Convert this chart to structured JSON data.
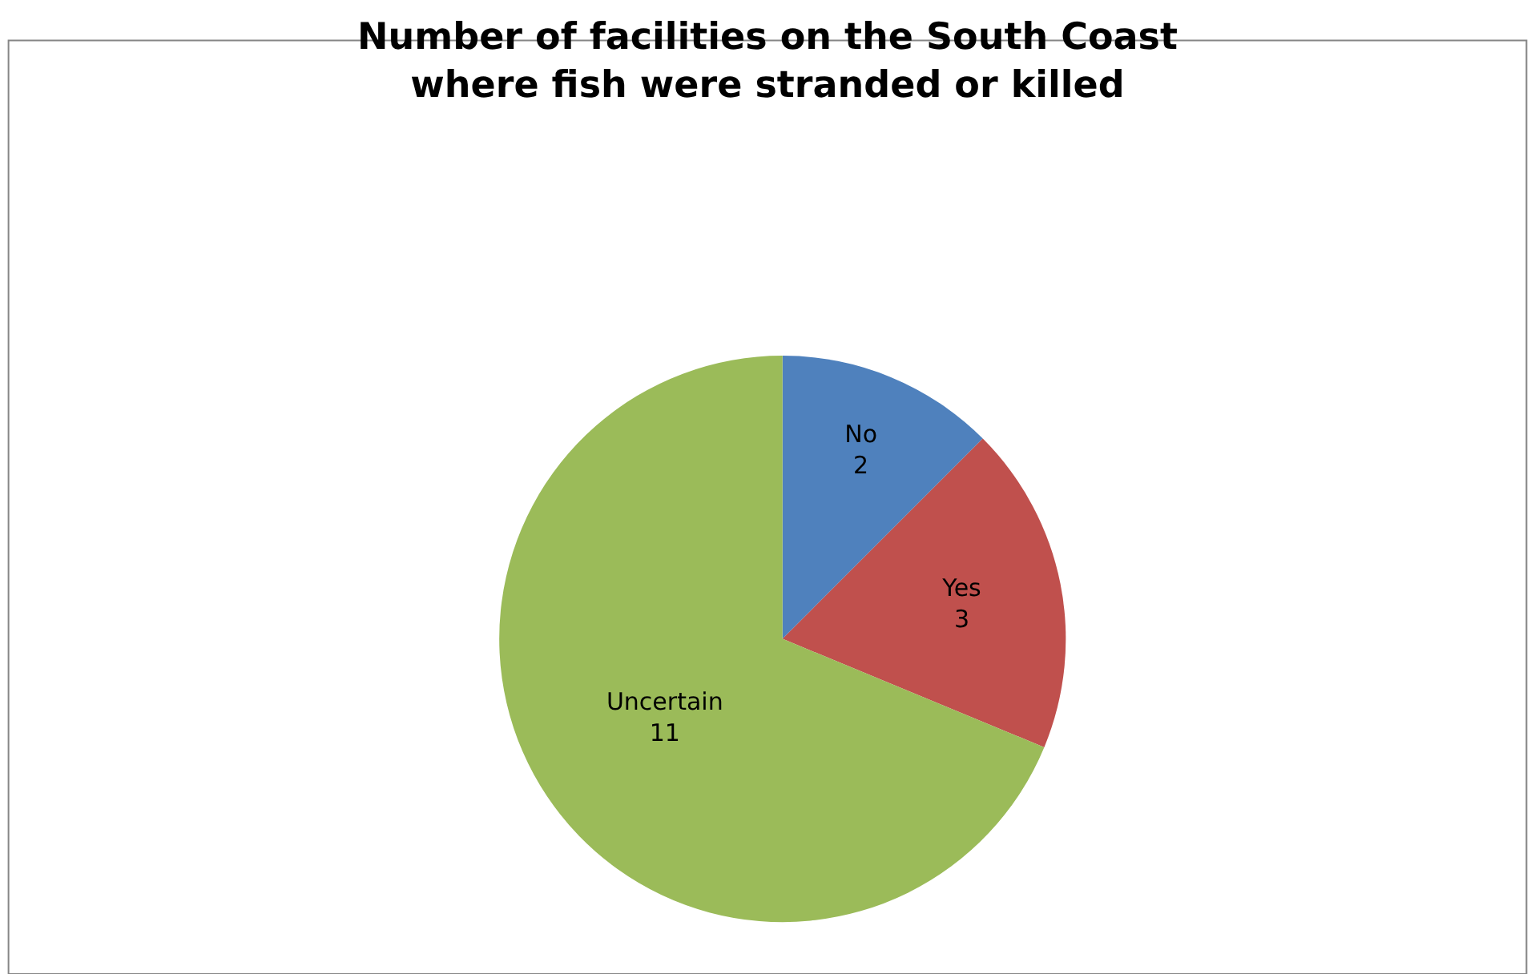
{
  "chart_data": {
    "type": "pie",
    "title": "Number of facilities on the South Coast\nwhere fish were stranded or killed",
    "categories": [
      "No",
      "Yes",
      "Uncertain"
    ],
    "values": [
      2,
      3,
      11
    ],
    "colors": [
      "#4f81bd",
      "#c0504d",
      "#9bbb59"
    ],
    "data_labels": true,
    "legend": false
  }
}
